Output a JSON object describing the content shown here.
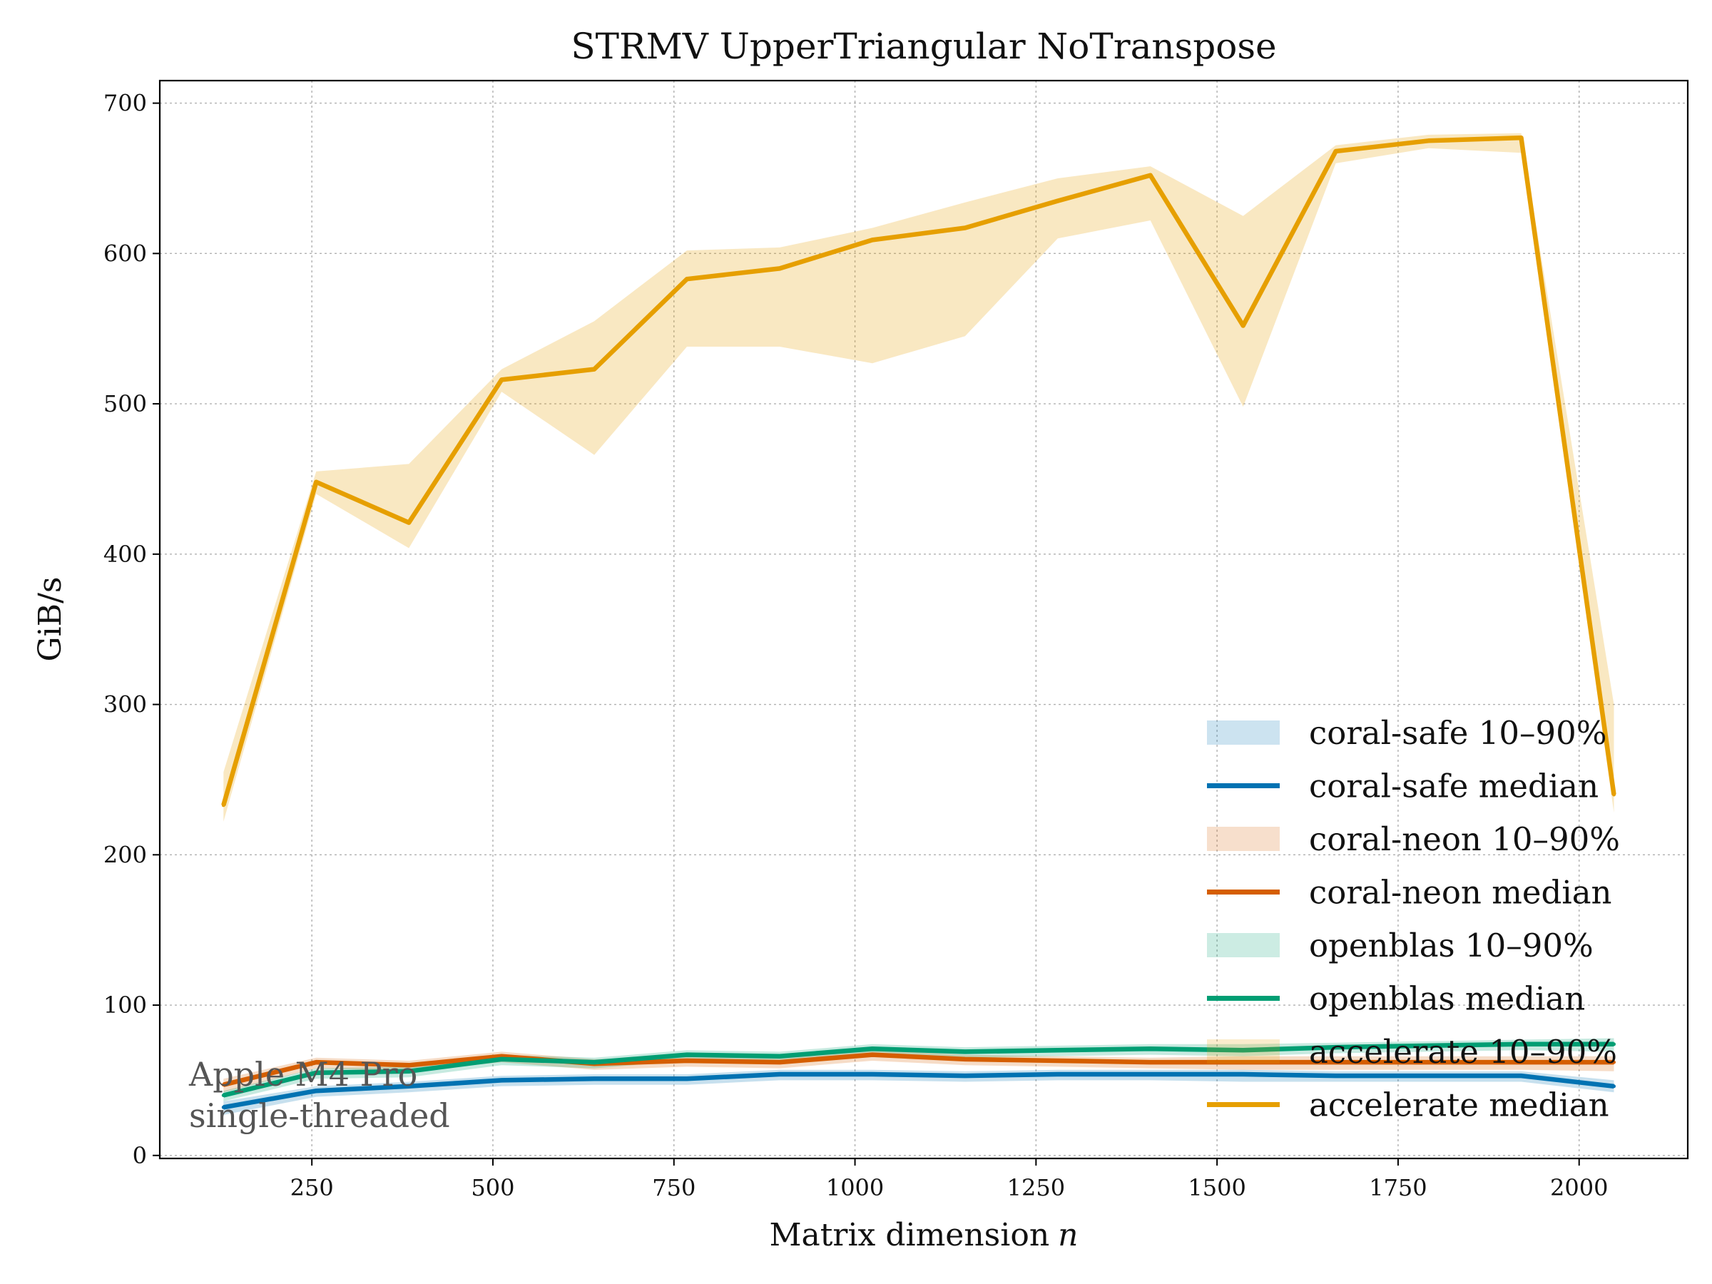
{
  "chart_data": {
    "type": "line",
    "title": "STRMV  UpperTriangular  NoTranspose",
    "xlabel": "Matrix dimension",
    "xlabel_var": "n",
    "ylabel": "GiB/s",
    "xlim": [
      40,
      2150
    ],
    "ylim": [
      -2,
      715
    ],
    "xticks": [
      250,
      500,
      750,
      1000,
      1250,
      1500,
      1750,
      2000
    ],
    "yticks": [
      0,
      100,
      200,
      300,
      400,
      500,
      600,
      700
    ],
    "grid": true,
    "legend_position": "lower-right",
    "annotation": [
      "Apple M4 Pro",
      "single-threaded"
    ],
    "x": [
      128,
      256,
      384,
      512,
      640,
      768,
      896,
      1024,
      1152,
      1280,
      1408,
      1536,
      1664,
      1792,
      1920,
      2048
    ],
    "series": [
      {
        "name": "coral-safe",
        "color": "#0072b2",
        "median_label": "coral-safe median",
        "band_label": "coral-safe 10–90%",
        "median": [
          32,
          43,
          46,
          50,
          51,
          51,
          54,
          54,
          53,
          54,
          54,
          54,
          53,
          53,
          53,
          46
        ],
        "p10": [
          27,
          39,
          42,
          46,
          47,
          47,
          50,
          50,
          49,
          50,
          50,
          49,
          49,
          49,
          49,
          42
        ],
        "p90": [
          36,
          46,
          49,
          53,
          54,
          54,
          57,
          57,
          56,
          57,
          57,
          57,
          56,
          56,
          56,
          50
        ]
      },
      {
        "name": "coral-neon",
        "color": "#d55e00",
        "median_label": "coral-neon median",
        "band_label": "coral-neon 10–90%",
        "median": [
          47,
          62,
          60,
          66,
          61,
          63,
          62,
          67,
          64,
          63,
          62,
          62,
          62,
          62,
          62,
          62
        ],
        "p10": [
          42,
          58,
          56,
          62,
          57,
          59,
          58,
          63,
          60,
          59,
          58,
          57,
          57,
          57,
          57,
          56
        ],
        "p90": [
          51,
          65,
          63,
          69,
          64,
          66,
          65,
          70,
          67,
          66,
          65,
          66,
          66,
          66,
          66,
          66
        ]
      },
      {
        "name": "openblas",
        "color": "#009e73",
        "median_label": "openblas median",
        "band_label": "openblas 10–90%",
        "median": [
          40,
          55,
          56,
          64,
          62,
          67,
          66,
          71,
          69,
          70,
          71,
          70,
          72,
          73,
          74,
          74
        ],
        "p10": [
          36,
          51,
          52,
          60,
          58,
          63,
          62,
          67,
          65,
          66,
          67,
          66,
          68,
          69,
          70,
          69
        ],
        "p90": [
          43,
          58,
          59,
          67,
          65,
          70,
          69,
          74,
          72,
          73,
          74,
          74,
          75,
          76,
          77,
          78
        ]
      },
      {
        "name": "accelerate",
        "color": "#e69f00",
        "median_label": "accelerate median",
        "band_label": "accelerate 10–90%",
        "median": [
          233,
          448,
          421,
          516,
          523,
          583,
          590,
          609,
          617,
          635,
          652,
          552,
          668,
          675,
          677,
          240
        ],
        "p10": [
          222,
          440,
          404,
          508,
          466,
          538,
          538,
          527,
          545,
          610,
          622,
          498,
          660,
          670,
          667,
          228
        ],
        "p90": [
          255,
          455,
          460,
          523,
          555,
          602,
          604,
          617,
          634,
          650,
          658,
          625,
          672,
          679,
          680,
          300
        ]
      }
    ]
  }
}
